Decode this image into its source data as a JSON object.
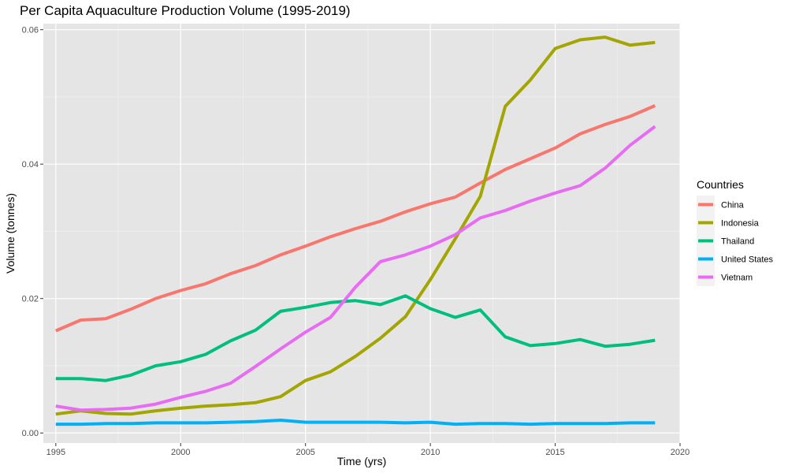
{
  "chart_data": {
    "type": "line",
    "title": "Per Capita Aquaculture Production Volume (1995-2019)",
    "xlabel": "Time (yrs)",
    "ylabel": "Volume (tonnes)",
    "xlim": [
      1994.5,
      2020
    ],
    "ylim": [
      -0.0015,
      0.0609
    ],
    "x_ticks": [
      1995,
      2000,
      2005,
      2010,
      2015,
      2020
    ],
    "y_ticks": [
      0.0,
      0.02,
      0.04,
      0.06
    ],
    "y_tick_labels": [
      "0.00",
      "0.02",
      "0.04",
      "0.06"
    ],
    "grid": true,
    "legend_title": "Countries",
    "legend_position": "right",
    "background": "#e5e5e5",
    "x": [
      1995,
      1996,
      1997,
      1998,
      1999,
      2000,
      2001,
      2002,
      2003,
      2004,
      2005,
      2006,
      2007,
      2008,
      2009,
      2010,
      2011,
      2012,
      2013,
      2014,
      2015,
      2016,
      2017,
      2018,
      2019
    ],
    "series": [
      {
        "name": "China",
        "color": "#f8766d",
        "values": [
          0.0152,
          0.0168,
          0.017,
          0.0184,
          0.02,
          0.0212,
          0.0222,
          0.0237,
          0.0249,
          0.0265,
          0.0278,
          0.0292,
          0.0304,
          0.0315,
          0.0329,
          0.0341,
          0.0351,
          0.0372,
          0.0392,
          0.0408,
          0.0424,
          0.0445,
          0.0459,
          0.0471,
          0.0487
        ]
      },
      {
        "name": "Indonesia",
        "color": "#a3a500",
        "values": [
          0.0028,
          0.0033,
          0.0029,
          0.0028,
          0.0033,
          0.0037,
          0.004,
          0.0042,
          0.0045,
          0.0054,
          0.0078,
          0.0091,
          0.0114,
          0.0141,
          0.0173,
          0.0228,
          0.0289,
          0.0352,
          0.0486,
          0.0525,
          0.0572,
          0.0585,
          0.0589,
          0.0577,
          0.0581
        ]
      },
      {
        "name": "Thailand",
        "color": "#00bf7d",
        "values": [
          0.0081,
          0.0081,
          0.0078,
          0.0086,
          0.01,
          0.0106,
          0.0117,
          0.0137,
          0.0153,
          0.0181,
          0.0187,
          0.0194,
          0.0197,
          0.0191,
          0.0204,
          0.0185,
          0.0172,
          0.0183,
          0.0143,
          0.013,
          0.0133,
          0.0139,
          0.0129,
          0.0132,
          0.0138
        ]
      },
      {
        "name": "United States",
        "color": "#00b0f6",
        "values": [
          0.0013,
          0.0013,
          0.0014,
          0.0014,
          0.0015,
          0.0015,
          0.0015,
          0.0016,
          0.0017,
          0.0019,
          0.0016,
          0.0016,
          0.0016,
          0.0016,
          0.0015,
          0.0016,
          0.0013,
          0.0014,
          0.0014,
          0.0013,
          0.0014,
          0.0014,
          0.0014,
          0.0015,
          0.0015
        ]
      },
      {
        "name": "Vietnam",
        "color": "#e76bf3",
        "values": [
          0.004,
          0.0034,
          0.0035,
          0.0037,
          0.0043,
          0.0053,
          0.0062,
          0.0074,
          0.0099,
          0.0125,
          0.015,
          0.0172,
          0.0217,
          0.0255,
          0.0265,
          0.0278,
          0.0295,
          0.032,
          0.0331,
          0.0345,
          0.0357,
          0.0368,
          0.0394,
          0.0428,
          0.0456
        ]
      }
    ]
  }
}
